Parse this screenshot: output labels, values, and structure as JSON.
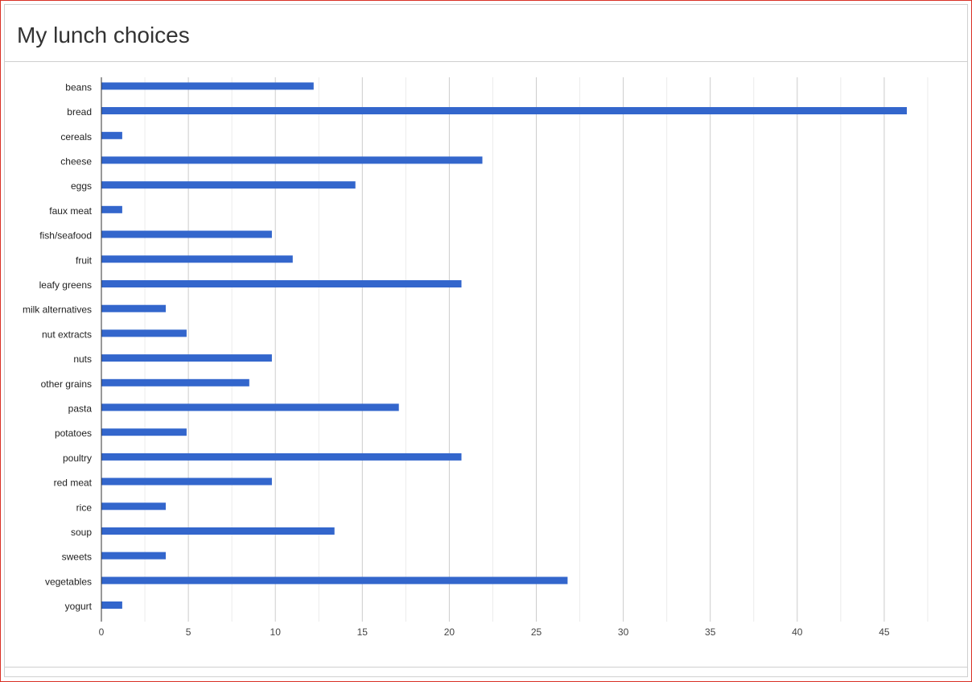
{
  "title": "My lunch choices",
  "colors": {
    "bar": "#3366cc",
    "grid_major": "#cccccc",
    "grid_minor": "#ebebeb",
    "axis": "#333333",
    "label": "#222222",
    "tick": "#444444"
  },
  "chart_data": {
    "type": "bar",
    "orientation": "horizontal",
    "categories": [
      "beans",
      "bread",
      "cereals",
      "cheese",
      "eggs",
      "faux meat",
      "fish/seafood",
      "fruit",
      "leafy greens",
      "milk alternatives",
      "nut extracts",
      "nuts",
      "other grains",
      "pasta",
      "potatoes",
      "poultry",
      "red meat",
      "rice",
      "soup",
      "sweets",
      "vegetables",
      "yogurt"
    ],
    "values": [
      12.2,
      46.3,
      1.2,
      21.9,
      14.6,
      1.2,
      9.8,
      11.0,
      20.7,
      3.7,
      4.9,
      9.8,
      8.5,
      17.1,
      4.9,
      20.7,
      9.8,
      3.7,
      13.4,
      3.7,
      26.8,
      1.2
    ],
    "xlim": [
      0,
      48
    ],
    "x_ticks": [
      "0",
      "5",
      "10",
      "15",
      "20",
      "25",
      "30",
      "35",
      "40",
      "45"
    ],
    "grid": true,
    "legend": "none"
  }
}
